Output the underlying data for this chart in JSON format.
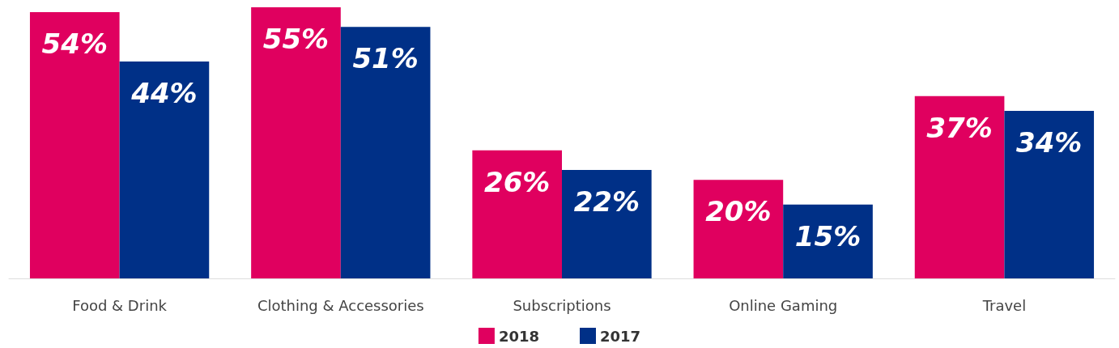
{
  "chart_data": {
    "type": "bar",
    "categories": [
      "Food & Drink",
      "Clothing & Accessories",
      "Subscriptions",
      "Online Gaming",
      "Travel"
    ],
    "series": [
      {
        "name": "2018",
        "color": "#e0005f",
        "values": [
          54,
          55,
          26,
          20,
          37
        ],
        "value_labels": [
          "54%",
          "55%",
          "26%",
          "20%",
          "37%"
        ]
      },
      {
        "name": "2017",
        "color": "#003087",
        "values": [
          44,
          51,
          22,
          15,
          34
        ],
        "value_labels": [
          "44%",
          "51%",
          "22%",
          "15%",
          "34%"
        ]
      }
    ],
    "ylim": [
      0,
      55
    ],
    "legend": "bottom"
  }
}
